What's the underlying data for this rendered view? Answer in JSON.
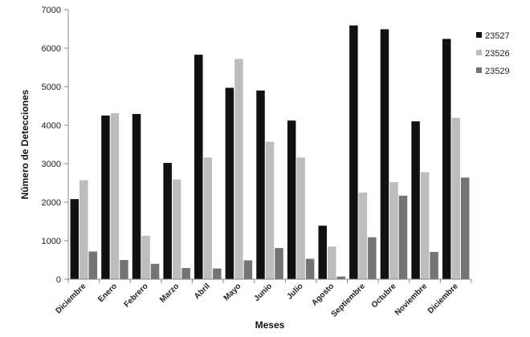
{
  "chart_data": {
    "type": "bar",
    "xlabel": "Meses",
    "ylabel": "Número de Detecciones",
    "ylim": [
      0,
      7000
    ],
    "yticks": [
      0,
      1000,
      2000,
      3000,
      4000,
      5000,
      6000,
      7000
    ],
    "grid": false,
    "legend_position": "right",
    "categories": [
      "Diciembre",
      "Enero",
      "Febrero",
      "Marzo",
      "Abril",
      "Mayo",
      "Junio",
      "Julio",
      "Agosto",
      "Septiembre",
      "Octubre",
      "Noviembre",
      "Diciembre"
    ],
    "series": [
      {
        "name": "23527",
        "color": "#111111",
        "values": [
          2080,
          4250,
          4290,
          3020,
          5830,
          4970,
          4900,
          4120,
          1390,
          6590,
          6490,
          4100,
          6240
        ]
      },
      {
        "name": "23526",
        "color": "#bdbdbd",
        "values": [
          2570,
          4310,
          1130,
          2590,
          3160,
          5720,
          3570,
          3160,
          850,
          2250,
          2520,
          2780,
          4190
        ]
      },
      {
        "name": "23529",
        "color": "#747474",
        "values": [
          720,
          500,
          400,
          290,
          280,
          490,
          810,
          530,
          70,
          1090,
          2170,
          710,
          2640
        ]
      }
    ]
  }
}
